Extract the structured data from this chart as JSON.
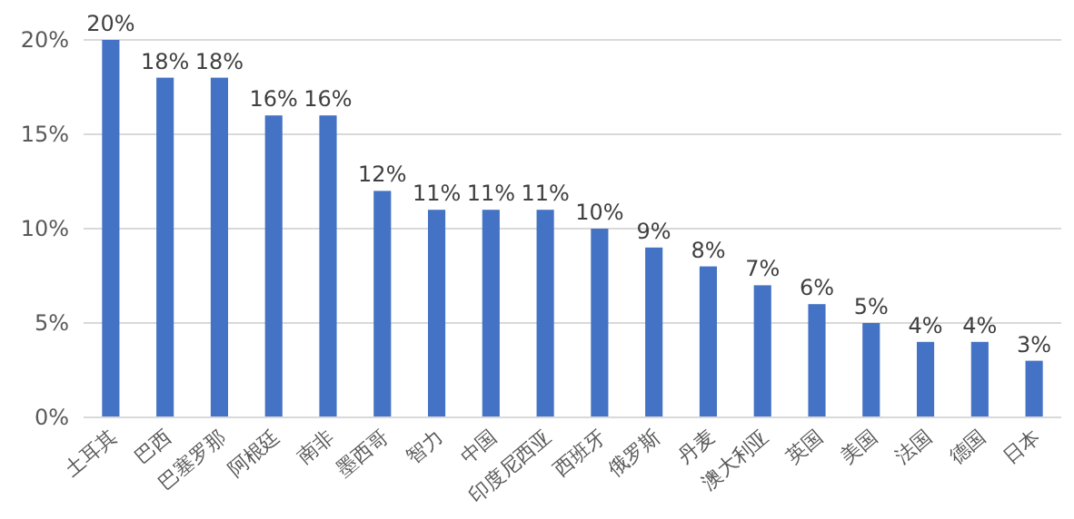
{
  "chart_data": {
    "type": "bar",
    "categories": [
      "土耳其",
      "巴西",
      "巴塞罗那",
      "阿根廷",
      "南非",
      "墨西哥",
      "智力",
      "中国",
      "印度尼西亚",
      "西班牙",
      "俄罗斯",
      "丹麦",
      "澳大利亚",
      "英国",
      "美国",
      "法国",
      "德国",
      "日本"
    ],
    "values": [
      20,
      18,
      18,
      16,
      16,
      12,
      11,
      11,
      11,
      10,
      9,
      8,
      7,
      6,
      5,
      4,
      4,
      3
    ],
    "color": "#4472c4",
    "ylim": [
      0,
      20
    ],
    "yticks": [
      {
        "value": 0,
        "label": "0%"
      },
      {
        "value": 5,
        "label": "5%"
      },
      {
        "value": 10,
        "label": "10%"
      },
      {
        "value": 15,
        "label": "15%"
      },
      {
        "value": 20,
        "label": "20%"
      }
    ],
    "value_labels": [
      "20%",
      "18%",
      "18%",
      "16%",
      "16%",
      "12%",
      "11%",
      "11%",
      "11%",
      "10%",
      "9%",
      "8%",
      "7%",
      "6%",
      "5%",
      "4%",
      "4%",
      "3%"
    ],
    "grid": "y"
  }
}
